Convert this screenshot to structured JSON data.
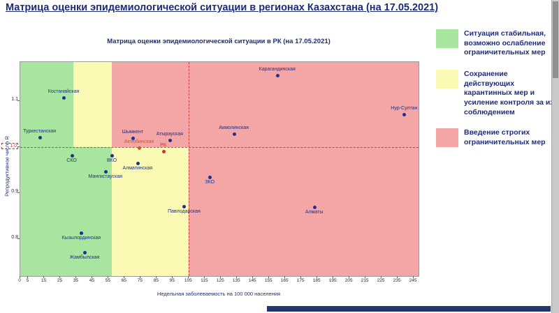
{
  "page_title": "Матрица оценки эпидемиологической ситуации в регионах Казахстана (на 17.05.2021)",
  "chart_data": {
    "type": "scatter",
    "title": "Матрица оценки эпидемиологической ситуации в РК (на 17.05.2021)",
    "xlabel": "Недельная заболеваемость на 100 000 населения",
    "ylabel": "Репродуктивное число R",
    "xlim": [
      0,
      248
    ],
    "ylim": [
      0.72,
      1.185
    ],
    "x_ticks": [
      0,
      5,
      15,
      25,
      35,
      45,
      55,
      65,
      75,
      85,
      95,
      105,
      115,
      125,
      135,
      145,
      155,
      165,
      175,
      185,
      195,
      205,
      215,
      225,
      235,
      245
    ],
    "y_ticks": [
      1.1,
      1.0,
      0.9,
      0.8
    ],
    "y_tick_highlight": 1.0,
    "dashed_lines": {
      "horizontal_y": 1.0,
      "vertical_x": 105,
      "color": "#d03a3a"
    },
    "colors": {
      "green": "#a8e6a0",
      "yellow": "#fbfab4",
      "red": "#f4a6a6",
      "point": "#20308e",
      "label": "#1b2f86"
    },
    "zones": [
      {
        "name": "green-upper",
        "x0": 0,
        "x1": 33,
        "y0": 1.0,
        "y1": 1.185,
        "color": "#a8e6a0"
      },
      {
        "name": "yellow-upper",
        "x0": 33,
        "x1": 57,
        "y0": 1.0,
        "y1": 1.185,
        "color": "#fbfab4"
      },
      {
        "name": "red-upper",
        "x0": 57,
        "x1": 248,
        "y0": 1.0,
        "y1": 1.185,
        "color": "#f4a6a6"
      },
      {
        "name": "green-lower",
        "x0": 0,
        "x1": 57,
        "y0": 0.72,
        "y1": 1.0,
        "color": "#a8e6a0"
      },
      {
        "name": "yellow-lower",
        "x0": 57,
        "x1": 105,
        "y0": 0.72,
        "y1": 1.0,
        "color": "#fbfab4"
      },
      {
        "name": "red-lower",
        "x0": 105,
        "x1": 248,
        "y0": 0.72,
        "y1": 1.0,
        "color": "#f4a6a6"
      }
    ],
    "points": [
      {
        "name": "Костанайская",
        "x": 27,
        "y": 1.108,
        "label_pos": "above"
      },
      {
        "name": "Туркестанская",
        "x": 12,
        "y": 1.022,
        "label_pos": "above"
      },
      {
        "name": "Шымкент",
        "x": 70,
        "y": 1.02,
        "label_pos": "above"
      },
      {
        "name": "Актюбинская",
        "x": 74,
        "y": 0.999,
        "label_pos": "above",
        "color": "#c8581e"
      },
      {
        "name": "Атырауская",
        "x": 93,
        "y": 1.015,
        "label_pos": "above"
      },
      {
        "name": "Акмолинская",
        "x": 133,
        "y": 1.029,
        "label_pos": "above"
      },
      {
        "name": "Карагандинская",
        "x": 160,
        "y": 1.156,
        "label_pos": "above"
      },
      {
        "name": "Нур-Султан",
        "x": 239,
        "y": 1.071,
        "label_pos": "above"
      },
      {
        "name": "РК",
        "x": 89,
        "y": 0.991,
        "label_pos": "above",
        "color": "#d03030"
      },
      {
        "name": "СКО",
        "x": 32,
        "y": 0.982,
        "label_pos": "below"
      },
      {
        "name": "ВКО",
        "x": 57,
        "y": 0.982,
        "label_pos": "below"
      },
      {
        "name": "Алматинская",
        "x": 73,
        "y": 0.965,
        "label_pos": "below"
      },
      {
        "name": "Мангистауская",
        "x": 53,
        "y": 0.947,
        "label_pos": "below"
      },
      {
        "name": "ЗКО",
        "x": 118,
        "y": 0.935,
        "label_pos": "below"
      },
      {
        "name": "Павлодарская",
        "x": 102,
        "y": 0.871,
        "label_pos": "below"
      },
      {
        "name": "Алматы",
        "x": 183,
        "y": 0.87,
        "label_pos": "below"
      },
      {
        "name": "Кызылординская",
        "x": 38,
        "y": 0.814,
        "label_pos": "below"
      },
      {
        "name": "Жамбылская",
        "x": 40,
        "y": 0.772,
        "label_pos": "below"
      }
    ]
  },
  "legend": {
    "items": [
      {
        "zone": "green",
        "color": "#a8e6a0",
        "text": "Ситуация стабильная, возможно ослабление ограничительных мер"
      },
      {
        "zone": "yellow",
        "color": "#fbfab4",
        "text": "Сохранение действующих карантинных мер и усиление контроля за их соблюдением"
      },
      {
        "zone": "red",
        "color": "#f4a6a6",
        "text": "Введение строгих ограничительных мер"
      }
    ]
  }
}
